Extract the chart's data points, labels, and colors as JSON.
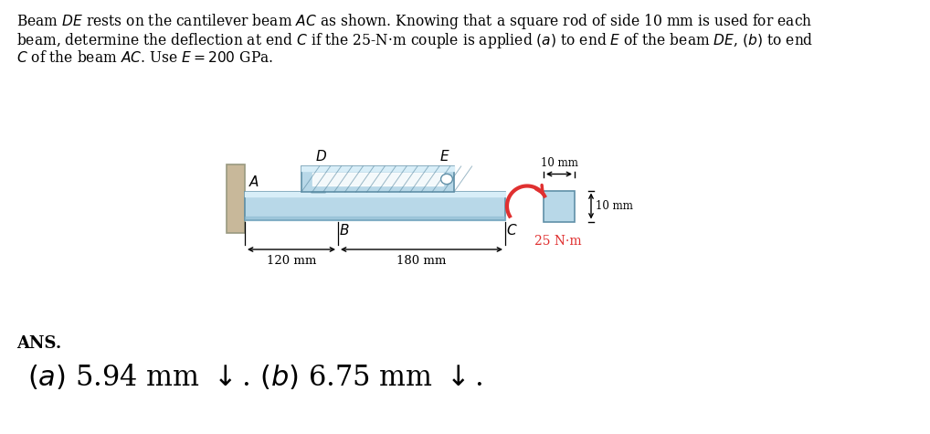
{
  "bg_color": "#ffffff",
  "problem_text_lines": [
    "Beam $\\mathit{DE}$ rests on the cantilever beam $\\mathit{AC}$ as shown. Knowing that a square rod of side 10 mm is used for each",
    "beam, determine the deflection at end $C$ if the 25-N·m couple is applied $(a)$ to end $E$ of the beam $\\mathit{DE}$, $(b)$ to end",
    "$C$ of the beam $\\mathit{AC}$. Use $E = 200$ GPa."
  ],
  "ans_label": "ANS.",
  "ans_text": "$(a)$ 5.94 mm $\\downarrow$. $(b)$ 6.75 mm $\\downarrow$.",
  "diagram": {
    "wall_color": "#c8b89a",
    "wall_edge": "#999980",
    "beam_color_main": "#b8d8e8",
    "beam_color_upper": "#b8d8e8",
    "beam_edge": "#6090a8",
    "beam_highlight": "#d8eef8",
    "beam_shadow": "#88b8d0",
    "square_color": "#b8d8e8",
    "square_edge": "#6090a8",
    "couple_color": "#e03030",
    "dim_color": "#000000"
  }
}
